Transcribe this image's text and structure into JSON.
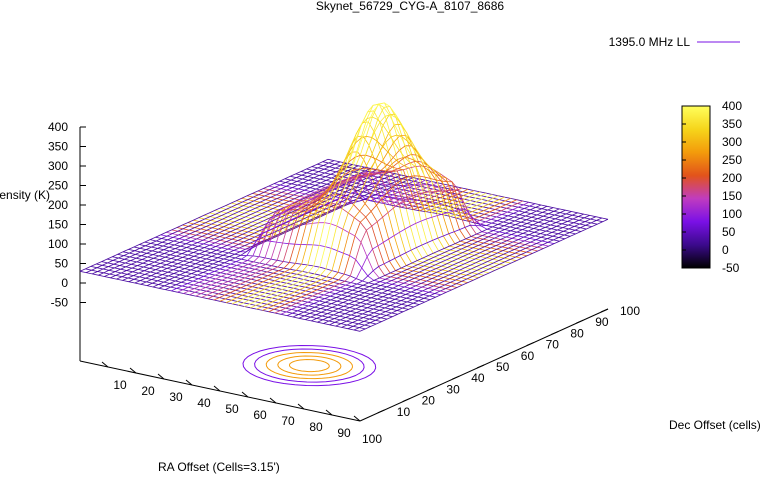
{
  "chart_data": {
    "type": "surface3d",
    "title": "Skynet_56729_CYG-A_8107_8686",
    "legend": {
      "label": "1395.0 MHz LL",
      "position": "top-right"
    },
    "xlabel": "RA Offset (Cells=3.15')",
    "ylabel": "Dec Offset (cells)",
    "zlabel": "Intensity (K)",
    "x_ticks": [
      "10",
      "20",
      "30",
      "40",
      "50",
      "60",
      "70",
      "80",
      "90",
      "100"
    ],
    "y_ticks": [
      "10",
      "20",
      "30",
      "40",
      "50",
      "60",
      "70",
      "80",
      "90",
      "100"
    ],
    "z_ticks": [
      "400",
      "350",
      "300",
      "250",
      "200",
      "150",
      "100",
      "50",
      "0",
      "-50"
    ],
    "colorbar_ticks": [
      "400",
      "350",
      "300",
      "250",
      "200",
      "150",
      "100",
      "50",
      "0",
      "-50"
    ],
    "xlim": [
      0,
      100
    ],
    "ylim": [
      0,
      100
    ],
    "zlim": [
      -50,
      400
    ],
    "colormap": [
      "#000000",
      "#3b0a8c",
      "#7a10e6",
      "#c03cbf",
      "#e2531b",
      "#f39b0b",
      "#f6d51b",
      "#ffff5c"
    ],
    "surface": {
      "baseline": 30,
      "peak": {
        "x": 58,
        "y": 55,
        "value": 395
      },
      "shoulder_max": 175,
      "plateau_level": 120,
      "plateau_extent_x": [
        30,
        75
      ],
      "plateau_extent_y": [
        30,
        80
      ],
      "line_color": "#7a10e6"
    },
    "contour_projection": {
      "color_outer": "#7a10e6",
      "color_inner": "#f39b0b"
    }
  }
}
